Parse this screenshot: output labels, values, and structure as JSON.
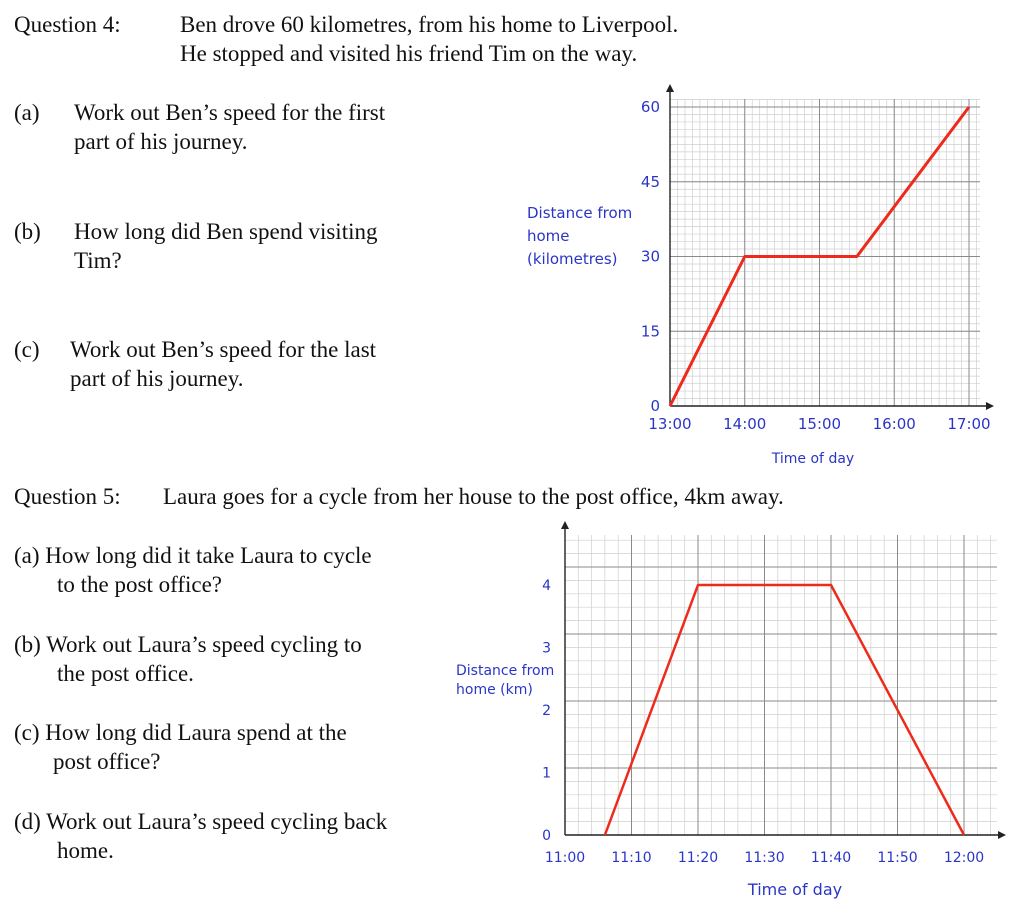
{
  "q4": {
    "heading": "Question 4:",
    "intro_1": "Ben drove 60 kilometres, from his home to Liverpool.",
    "intro_2": "He stopped and visited his friend Tim on the way.",
    "a_label": "(a)",
    "a_text_1": "Work out Ben’s speed for the first",
    "a_text_2": "part of his journey.",
    "b_label": "(b)",
    "b_text_1": "How long did Ben spend visiting",
    "b_text_2": "Tim?",
    "c_label": "(c)",
    "c_text_1": "Work out Ben’s speed for the last",
    "c_text_2": "part of his journey."
  },
  "q5": {
    "heading": "Question 5:",
    "intro": "Laura goes for a cycle from her house to the post office, 4km away.",
    "a_text_1": "(a)  How long did it take Laura to cycle",
    "a_text_2": "to the post office?",
    "b_text_1": "(b)  Work out Laura’s speed cycling to",
    "b_text_2": "the post office.",
    "c_text_1": "(c)  How long did Laura spend at the",
    "c_text_2": "post office?",
    "d_text_1": "(d)  Work out Laura’s speed cycling back",
    "d_text_2": "home."
  },
  "chart_data": [
    {
      "type": "line",
      "xlabel": "Time of day",
      "ylabel": [
        "Distance from",
        "home",
        "(kilometres)"
      ],
      "x_ticks": [
        "13:00",
        "14:00",
        "15:00",
        "16:00",
        "17:00"
      ],
      "y_ticks": [
        0,
        15,
        30,
        45,
        60
      ],
      "xlim": [
        "13:00",
        "17:00"
      ],
      "ylim": [
        0,
        60
      ],
      "grid": true,
      "line_color": "#ee2a1c",
      "points": [
        [
          "13:00",
          0
        ],
        [
          "14:00",
          30
        ],
        [
          "15:30",
          30
        ],
        [
          "17:00",
          60
        ]
      ]
    },
    {
      "type": "line",
      "xlabel": "Time of day",
      "ylabel": [
        "Distance from",
        "home (km)"
      ],
      "x_ticks": [
        "11:00",
        "11:10",
        "11:20",
        "11:30",
        "11:40",
        "11:50",
        "12:00"
      ],
      "y_ticks": [
        0,
        1,
        2,
        3,
        4
      ],
      "xlim": [
        "11:00",
        "12:00"
      ],
      "ylim": [
        0,
        4.8
      ],
      "grid": true,
      "line_color": "#ee2a1c",
      "points": [
        [
          "11:06",
          0
        ],
        [
          "11:20",
          4
        ],
        [
          "11:40",
          4
        ],
        [
          "12:00",
          0
        ]
      ]
    }
  ]
}
